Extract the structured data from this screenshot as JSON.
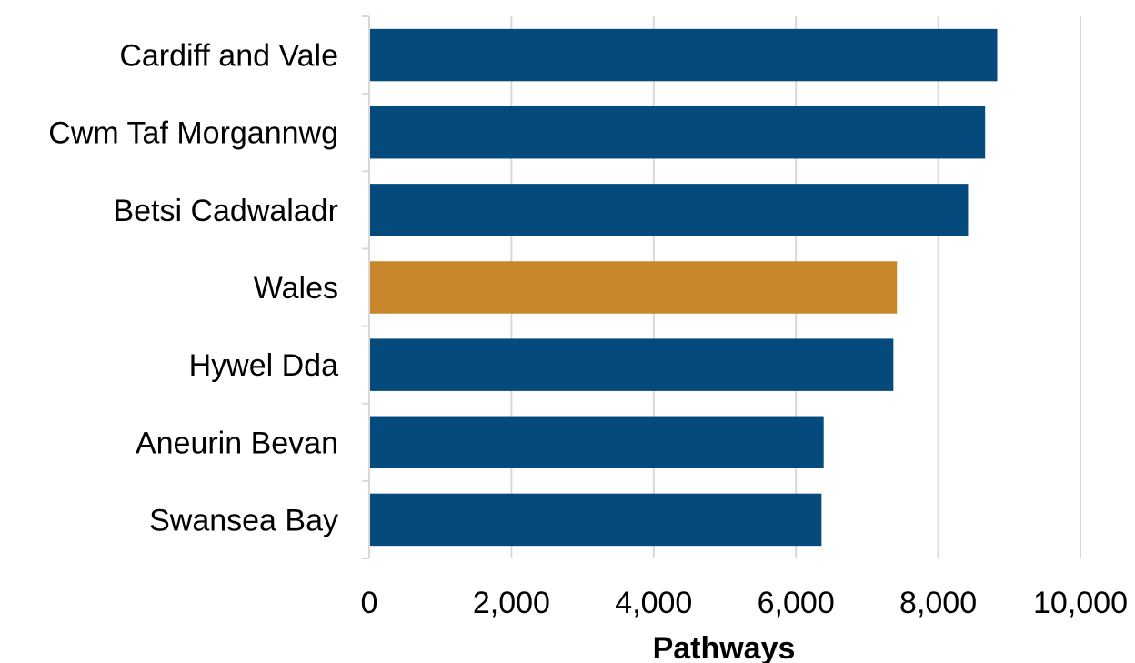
{
  "chart_data": {
    "type": "bar",
    "orientation": "horizontal",
    "categories": [
      "Cardiff and Vale",
      "Cwm Taf Morgannwg",
      "Betsi Cadwaladr",
      "Wales",
      "Hywel Dda",
      "Aneurin Bevan",
      "Swansea Bay"
    ],
    "values": [
      8830,
      8660,
      8420,
      7420,
      7370,
      6390,
      6360
    ],
    "highlight": "Wales",
    "xlabel": "Pathways",
    "ylabel": "",
    "xlim": [
      0,
      10000
    ],
    "x_ticks": [
      0,
      2000,
      4000,
      6000,
      8000,
      10000
    ],
    "x_tick_labels": [
      "0",
      "2,000",
      "4,000",
      "6,000",
      "8,000",
      "10,000"
    ],
    "grid": "vertical",
    "colors": {
      "bar": "#044a7c",
      "highlight": "#c8862b",
      "grid": "#d9d9d9",
      "axis": "#d9d9d9"
    }
  }
}
